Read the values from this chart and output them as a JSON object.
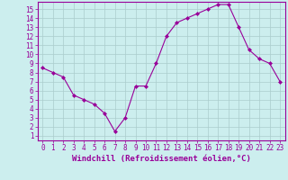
{
  "x": [
    0,
    1,
    2,
    3,
    4,
    5,
    6,
    7,
    8,
    9,
    10,
    11,
    12,
    13,
    14,
    15,
    16,
    17,
    18,
    19,
    20,
    21,
    22,
    23
  ],
  "y": [
    8.5,
    8.0,
    7.5,
    5.5,
    5.0,
    4.5,
    3.5,
    1.5,
    3.0,
    6.5,
    6.5,
    9.0,
    12.0,
    13.5,
    14.0,
    14.5,
    15.0,
    15.5,
    15.5,
    13.0,
    10.5,
    9.5,
    9.0,
    7.0
  ],
  "line_color": "#990099",
  "marker": "D",
  "marker_size": 2,
  "bg_color": "#cceeee",
  "grid_color": "#aacccc",
  "xlabel": "Windchill (Refroidissement éolien,°C)",
  "xlim": [
    -0.5,
    23.5
  ],
  "ylim": [
    0.5,
    15.8
  ],
  "xticks": [
    0,
    1,
    2,
    3,
    4,
    5,
    6,
    7,
    8,
    9,
    10,
    11,
    12,
    13,
    14,
    15,
    16,
    17,
    18,
    19,
    20,
    21,
    22,
    23
  ],
  "yticks": [
    1,
    2,
    3,
    4,
    5,
    6,
    7,
    8,
    9,
    10,
    11,
    12,
    13,
    14,
    15
  ],
  "tick_color": "#990099",
  "label_color": "#990099",
  "axis_color": "#990099",
  "tick_fontsize": 5.5,
  "xlabel_fontsize": 6.5
}
